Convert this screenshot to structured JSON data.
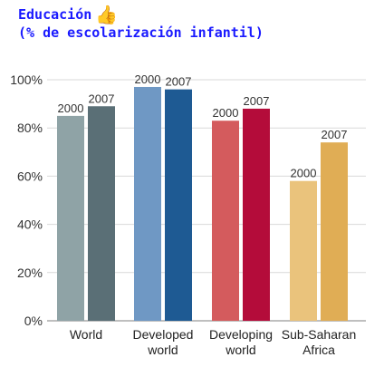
{
  "title_line1": "Educación",
  "title_line2": "(% de escolarización infantil)",
  "thumb_icon": "thumbs-up-icon",
  "chart_data": {
    "type": "bar",
    "categories": [
      "World",
      "Developed world",
      "Developing world",
      "Sub-Saharan Africa"
    ],
    "category_lines": [
      [
        "World"
      ],
      [
        "Developed",
        "world"
      ],
      [
        "Developing",
        "world"
      ],
      [
        "Sub-Saharan",
        "Africa"
      ]
    ],
    "series": [
      {
        "name": "2000",
        "values": [
          85,
          97,
          83,
          58
        ],
        "colors": [
          "#8fa3a6",
          "#6f98c4",
          "#d45b5d",
          "#eac37c"
        ]
      },
      {
        "name": "2007",
        "values": [
          89,
          96,
          88,
          74
        ],
        "colors": [
          "#5a6f76",
          "#1e5a93",
          "#b40c3a",
          "#e0ad55"
        ]
      }
    ],
    "y_ticks": [
      "0%",
      "20%",
      "40%",
      "60%",
      "80%",
      "100%"
    ],
    "ylim": [
      0,
      100
    ],
    "grid": true,
    "grid_color": "#d9d9d9"
  }
}
